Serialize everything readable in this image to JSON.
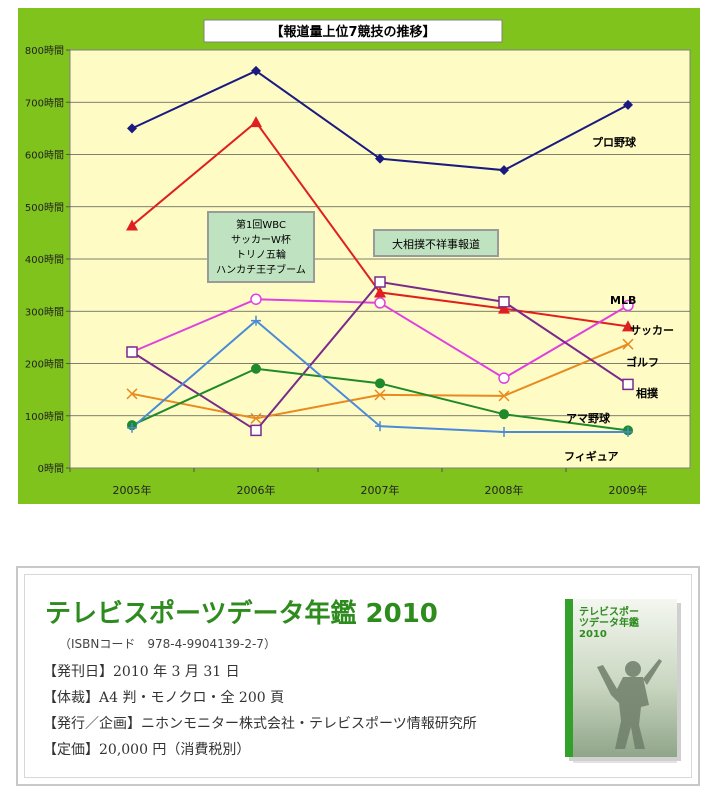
{
  "chart_data": {
    "type": "line",
    "title": "【報道量上位7競技の推移】",
    "categories": [
      "2005年",
      "2006年",
      "2007年",
      "2008年",
      "2009年"
    ],
    "y_ticks": [
      "0時間",
      "100時間",
      "200時間",
      "300時間",
      "400時間",
      "500時間",
      "600時間",
      "700時間",
      "800時間"
    ],
    "ylim": [
      0,
      800
    ],
    "grid": true,
    "series": [
      {
        "name": "プロ野球",
        "values": [
          650,
          760,
          592,
          570,
          695
        ],
        "color": "#1a1a80",
        "marker": "diamond"
      },
      {
        "name": "サッカー",
        "values": [
          464,
          662,
          336,
          305,
          271
        ],
        "color": "#e02020",
        "marker": "triangle"
      },
      {
        "name": "MLB",
        "values": [
          222,
          323,
          316,
          172,
          311
        ],
        "color": "#e040e0",
        "marker": "circle-open"
      },
      {
        "name": "ゴルフ",
        "values": [
          142,
          95,
          140,
          138,
          237
        ],
        "color": "#e88a20",
        "marker": "x"
      },
      {
        "name": "相撲",
        "values": [
          222,
          72,
          356,
          318,
          160
        ],
        "color": "#7a2a8a",
        "marker": "square-open"
      },
      {
        "name": "アマ野球",
        "values": [
          82,
          190,
          162,
          103,
          72
        ],
        "color": "#1f8a2a",
        "marker": "circle"
      },
      {
        "name": "フィギュア",
        "values": [
          77,
          282,
          80,
          69,
          69
        ],
        "color": "#4a8ad8",
        "marker": "plus"
      }
    ],
    "annotations": [
      {
        "lines": [
          "第1回WBC",
          "サッカーW杯",
          "トリノ五輪",
          "ハンカチ王子ブーム"
        ]
      },
      {
        "lines": [
          "大相撲不祥事報道"
        ]
      }
    ]
  },
  "ad": {
    "title": "テレビスポーツデータ年鑑 2010",
    "isbn": "（ISBNコード　978-4-9904139-2-7）",
    "lines": [
      "【発刊日】2010 年 3 月 31 日",
      "【体裁】A4 判・モノクロ・全 200 頁",
      "【発行／企画】ニホンモニター株式会社・テレビスポーツ情報研究所",
      "【定価】20,000 円（消費税別）"
    ],
    "cover_title": "テレビスポーツデータ年鑑 2010"
  }
}
